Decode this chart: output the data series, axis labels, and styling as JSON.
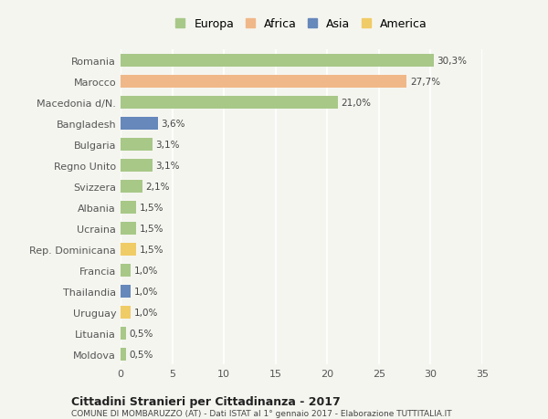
{
  "categories": [
    "Moldova",
    "Lituania",
    "Uruguay",
    "Thailandia",
    "Francia",
    "Rep. Dominicana",
    "Ucraina",
    "Albania",
    "Svizzera",
    "Regno Unito",
    "Bulgaria",
    "Bangladesh",
    "Macedonia d/N.",
    "Marocco",
    "Romania"
  ],
  "values": [
    0.5,
    0.5,
    1.0,
    1.0,
    1.0,
    1.5,
    1.5,
    1.5,
    2.1,
    3.1,
    3.1,
    3.6,
    21.0,
    27.7,
    30.3
  ],
  "labels": [
    "0,5%",
    "0,5%",
    "1,0%",
    "1,0%",
    "1,0%",
    "1,5%",
    "1,5%",
    "1,5%",
    "2,1%",
    "3,1%",
    "3,1%",
    "3,6%",
    "21,0%",
    "27,7%",
    "30,3%"
  ],
  "continents": [
    "Europa",
    "Europa",
    "America",
    "Asia",
    "Europa",
    "America",
    "Europa",
    "Europa",
    "Europa",
    "Europa",
    "Europa",
    "Asia",
    "Europa",
    "Africa",
    "Europa"
  ],
  "colors": {
    "Europa": "#a8c888",
    "Africa": "#f0b888",
    "Asia": "#6688bb",
    "America": "#f0cc66"
  },
  "xlim": [
    0,
    35
  ],
  "xticks": [
    0,
    5,
    10,
    15,
    20,
    25,
    30,
    35
  ],
  "title": "Cittadini Stranieri per Cittadinanza - 2017",
  "subtitle": "COMUNE DI MOMBARUZZO (AT) - Dati ISTAT al 1° gennaio 2017 - Elaborazione TUTTITALIA.IT",
  "background_color": "#f5f5f0",
  "grid_color": "#ffffff",
  "bar_height": 0.6,
  "legend_order": [
    "Europa",
    "Africa",
    "Asia",
    "America"
  ]
}
